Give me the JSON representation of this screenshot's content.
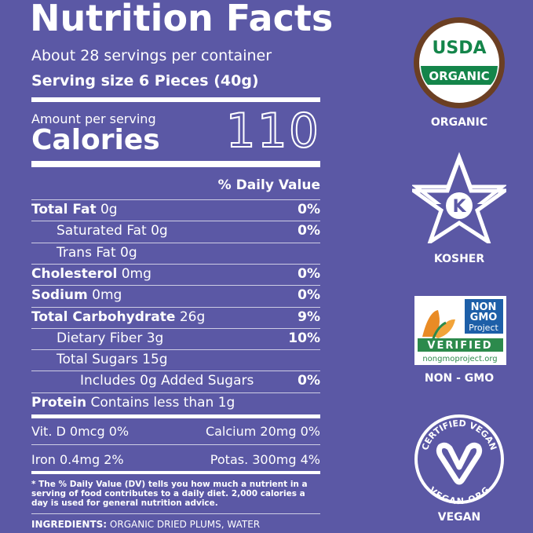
{
  "header": {
    "title": "Nutrition Facts",
    "servings": "About 28 servings per container",
    "serving_size": "Serving size 6 Pieces (40g)"
  },
  "calories": {
    "amount_label": "Amount per serving",
    "label": "Calories",
    "value": "110"
  },
  "daily_value_header": "% Daily Value",
  "nutrients": [
    {
      "name": "Total Fat",
      "amount": "0g",
      "dv": "0%"
    },
    {
      "name": "Saturated Fat",
      "amount": "0g",
      "dv": "0%"
    },
    {
      "name": "Trans Fat",
      "amount": "0g"
    },
    {
      "name": "Cholesterol",
      "amount": "0mg",
      "dv": "0%"
    },
    {
      "name": "Sodium",
      "amount": "0mg",
      "dv": "0%"
    },
    {
      "name": "Total Carbohydrate",
      "amount": "26g",
      "dv": "9%"
    },
    {
      "name": "Dietary Fiber",
      "amount": "3g",
      "dv": "10%"
    },
    {
      "name": "Total Sugars",
      "amount": "15g"
    },
    {
      "name": "Includes 0g Added Sugars",
      "dv": "0%"
    },
    {
      "name": "Protein",
      "amount": "Contains less than 1g"
    }
  ],
  "vitamins": [
    "Vit. D 0mcg 0%",
    "Calcium 20mg 0%",
    "Iron 0.4mg 2%",
    "Potas. 300mg 4%"
  ],
  "footnote": "* The % Daily Value (DV) tells you how much a nutrient in a serving of food contributes to a daily diet. 2,000 calories a day is used for general nutrition advice.",
  "ingredients": {
    "label": "INGREDIENTS:",
    "text": "ORGANIC DRIED PLUMS, WATER"
  },
  "badges": [
    {
      "label": "ORGANIC",
      "top": "USDA",
      "band": "ORGANIC"
    },
    {
      "label": "KOSHER",
      "mark": "K"
    },
    {
      "label": "NON - GMO",
      "lines": [
        "NON",
        "GMO",
        "Project"
      ],
      "band": "VERIFIED",
      "url": "nongmoproject.org"
    },
    {
      "label": "VEGAN",
      "top": "CERTIFIED VEGAN",
      "bottom": "VEGAN.ORG"
    }
  ]
}
